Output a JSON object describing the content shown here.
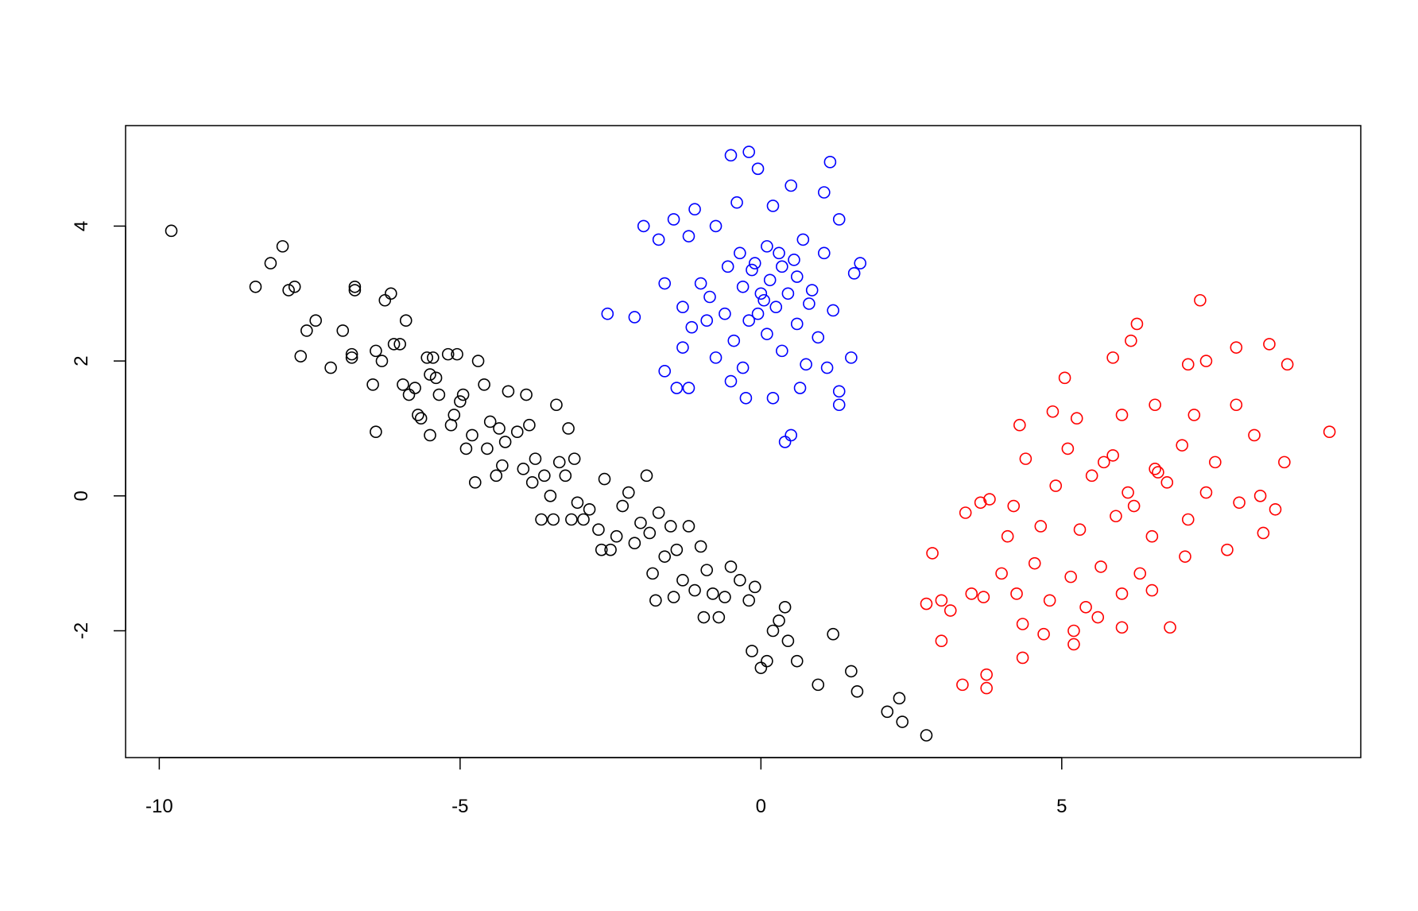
{
  "chart_data": {
    "type": "scatter",
    "xlim": [
      -10.56,
      9.97
    ],
    "ylim": [
      -3.88,
      5.49
    ],
    "xticks": [
      -10,
      -5,
      0,
      5
    ],
    "yticks": [
      -2,
      0,
      2,
      4
    ],
    "series": [
      {
        "color": "#000000",
        "x": [
          -9.8,
          -8.4,
          -8.15,
          -7.95,
          -7.85,
          -7.75,
          -7.65,
          -7.55,
          -7.4,
          -7.15,
          -6.95,
          -6.8,
          -6.8,
          -6.75,
          -6.75,
          -6.45,
          -6.4,
          -6.4,
          -6.3,
          -6.25,
          -6.15,
          -6.1,
          -6.0,
          -5.95,
          -5.9,
          -5.85,
          -5.75,
          -5.7,
          -5.65,
          -5.55,
          -5.5,
          -5.5,
          -5.45,
          -5.4,
          -5.35,
          -5.2,
          -5.15,
          -5.1,
          -5.05,
          -5.0,
          -4.95,
          -4.9,
          -4.8,
          -4.75,
          -4.7,
          -4.6,
          -4.55,
          -4.5,
          -4.4,
          -4.35,
          -4.3,
          -4.25,
          -4.2,
          -4.05,
          -3.95,
          -3.9,
          -3.85,
          -3.8,
          -3.75,
          -3.65,
          -3.6,
          -3.5,
          -3.45,
          -3.4,
          -3.35,
          -3.25,
          -3.2,
          -3.15,
          -3.1,
          -3.05,
          -2.95,
          -2.85,
          -2.7,
          -2.65,
          -2.6,
          -2.5,
          -2.4,
          -2.3,
          -2.2,
          -2.1,
          -2.0,
          -1.9,
          -1.85,
          -1.8,
          -1.75,
          -1.7,
          -1.6,
          -1.5,
          -1.45,
          -1.4,
          -1.3,
          -1.2,
          -1.1,
          -1.0,
          -0.95,
          -0.9,
          -0.8,
          -0.7,
          -0.6,
          -0.5,
          -0.35,
          -0.2,
          -0.15,
          -0.1,
          0.0,
          0.1,
          0.2,
          0.3,
          0.4,
          0.45,
          0.6,
          0.95,
          1.2,
          1.5,
          1.6,
          2.1,
          2.3,
          2.35,
          2.75
        ],
        "y": [
          3.93,
          3.1,
          3.45,
          3.7,
          3.05,
          3.1,
          2.07,
          2.45,
          2.6,
          1.9,
          2.45,
          2.1,
          2.05,
          3.05,
          3.1,
          1.65,
          2.15,
          0.95,
          2.0,
          2.9,
          3.0,
          2.25,
          2.25,
          1.65,
          2.6,
          1.5,
          1.6,
          1.2,
          1.15,
          2.05,
          0.9,
          1.8,
          2.05,
          1.75,
          1.5,
          2.1,
          1.05,
          1.2,
          2.1,
          1.4,
          1.5,
          0.7,
          0.9,
          0.2,
          2.0,
          1.65,
          0.7,
          1.1,
          0.3,
          1.0,
          0.45,
          0.8,
          1.55,
          0.95,
          0.4,
          1.5,
          1.05,
          0.2,
          0.55,
          -0.35,
          0.3,
          0.0,
          -0.35,
          1.35,
          0.5,
          0.3,
          1.0,
          -0.35,
          0.55,
          -0.1,
          -0.35,
          -0.2,
          -0.5,
          -0.8,
          0.25,
          -0.8,
          -0.6,
          -0.15,
          0.05,
          -0.7,
          -0.4,
          0.3,
          -0.55,
          -1.15,
          -1.55,
          -0.25,
          -0.9,
          -0.45,
          -1.5,
          -0.8,
          -1.25,
          -0.45,
          -1.4,
          -0.75,
          -1.8,
          -1.1,
          -1.45,
          -1.8,
          -1.5,
          -1.05,
          -1.25,
          -1.55,
          -2.3,
          -1.35,
          -2.55,
          -2.45,
          -2.0,
          -1.85,
          -1.65,
          -2.15,
          -2.45,
          -2.8,
          -2.05,
          -2.6,
          -2.9,
          -3.2,
          -3.0,
          -3.35,
          -3.55
        ]
      },
      {
        "color": "#0000ff",
        "x": [
          -0.2,
          -0.5,
          -0.05,
          1.15,
          0.5,
          1.05,
          -0.4,
          0.2,
          -1.45,
          -1.95,
          1.3,
          -1.1,
          -0.75,
          0.7,
          -1.7,
          1.05,
          -1.2,
          -0.35,
          0.1,
          1.65,
          -0.15,
          0.35,
          -1.0,
          -1.6,
          0.6,
          1.55,
          -0.85,
          0.0,
          0.85,
          -1.3,
          -0.6,
          0.25,
          1.2,
          -2.55,
          -2.1,
          -0.2,
          0.6,
          -1.15,
          -0.45,
          0.1,
          0.95,
          -1.3,
          -0.75,
          0.35,
          1.5,
          -1.6,
          -0.3,
          0.75,
          1.1,
          -1.4,
          -1.2,
          -0.5,
          0.2,
          0.65,
          -0.25,
          1.3,
          1.3,
          0.5,
          0.4,
          -0.1,
          0.15,
          -0.3,
          0.45,
          -0.55,
          0.3,
          0.8,
          -0.9,
          0.05,
          0.55,
          -0.05
        ],
        "y": [
          5.1,
          5.05,
          4.85,
          4.95,
          4.6,
          4.5,
          4.35,
          4.3,
          4.1,
          4.0,
          4.1,
          4.25,
          4.0,
          3.8,
          3.8,
          3.6,
          3.85,
          3.6,
          3.7,
          3.45,
          3.35,
          3.4,
          3.15,
          3.15,
          3.25,
          3.3,
          2.95,
          3.0,
          3.05,
          2.8,
          2.7,
          2.8,
          2.75,
          2.7,
          2.65,
          2.6,
          2.55,
          2.5,
          2.3,
          2.4,
          2.35,
          2.2,
          2.05,
          2.15,
          2.05,
          1.85,
          1.9,
          1.95,
          1.9,
          1.6,
          1.6,
          1.7,
          1.45,
          1.6,
          1.45,
          1.55,
          1.35,
          0.9,
          0.8,
          3.45,
          3.2,
          3.1,
          3.0,
          3.4,
          3.6,
          2.85,
          2.6,
          2.9,
          3.5,
          2.7
        ]
      },
      {
        "color": "#ff0000",
        "x": [
          7.3,
          6.25,
          5.85,
          6.15,
          7.4,
          7.9,
          8.45,
          7.1,
          9.45,
          8.75,
          8.7,
          8.3,
          8.55,
          8.35,
          5.05,
          5.25,
          4.3,
          4.85,
          6.0,
          6.55,
          7.2,
          7.9,
          4.4,
          5.1,
          5.85,
          6.55,
          7.0,
          7.55,
          8.2,
          3.65,
          3.4,
          3.8,
          4.2,
          4.9,
          5.5,
          6.1,
          6.75,
          7.4,
          7.95,
          4.1,
          4.65,
          5.3,
          5.9,
          6.5,
          7.1,
          7.75,
          2.85,
          4.0,
          4.55,
          5.15,
          5.65,
          6.3,
          7.05,
          3.5,
          3.7,
          4.25,
          4.8,
          5.4,
          6.0,
          6.5,
          2.75,
          3.0,
          3.15,
          4.35,
          4.7,
          5.2,
          5.2,
          6.0,
          6.8,
          3.0,
          4.35,
          3.35,
          3.75,
          3.75,
          5.6,
          6.2,
          5.7,
          6.6
        ],
        "y": [
          2.9,
          2.55,
          2.05,
          2.3,
          2.0,
          2.2,
          2.25,
          1.95,
          0.95,
          1.95,
          0.5,
          0.0,
          -0.2,
          -0.55,
          1.75,
          1.15,
          1.05,
          1.25,
          1.2,
          1.35,
          1.2,
          1.35,
          0.55,
          0.7,
          0.6,
          0.4,
          0.75,
          0.5,
          0.9,
          -0.1,
          -0.25,
          -0.05,
          -0.15,
          0.15,
          0.3,
          0.05,
          0.2,
          0.05,
          -0.1,
          -0.6,
          -0.45,
          -0.5,
          -0.3,
          -0.6,
          -0.35,
          -0.8,
          -0.85,
          -1.15,
          -1.0,
          -1.2,
          -1.05,
          -1.15,
          -0.9,
          -1.45,
          -1.5,
          -1.45,
          -1.55,
          -1.65,
          -1.45,
          -1.4,
          -1.6,
          -1.55,
          -1.7,
          -1.9,
          -2.05,
          -2.0,
          -2.2,
          -1.95,
          -1.95,
          -2.15,
          -2.4,
          -2.8,
          -2.85,
          -2.65,
          -1.8,
          -0.15,
          0.5,
          0.35
        ]
      }
    ]
  }
}
